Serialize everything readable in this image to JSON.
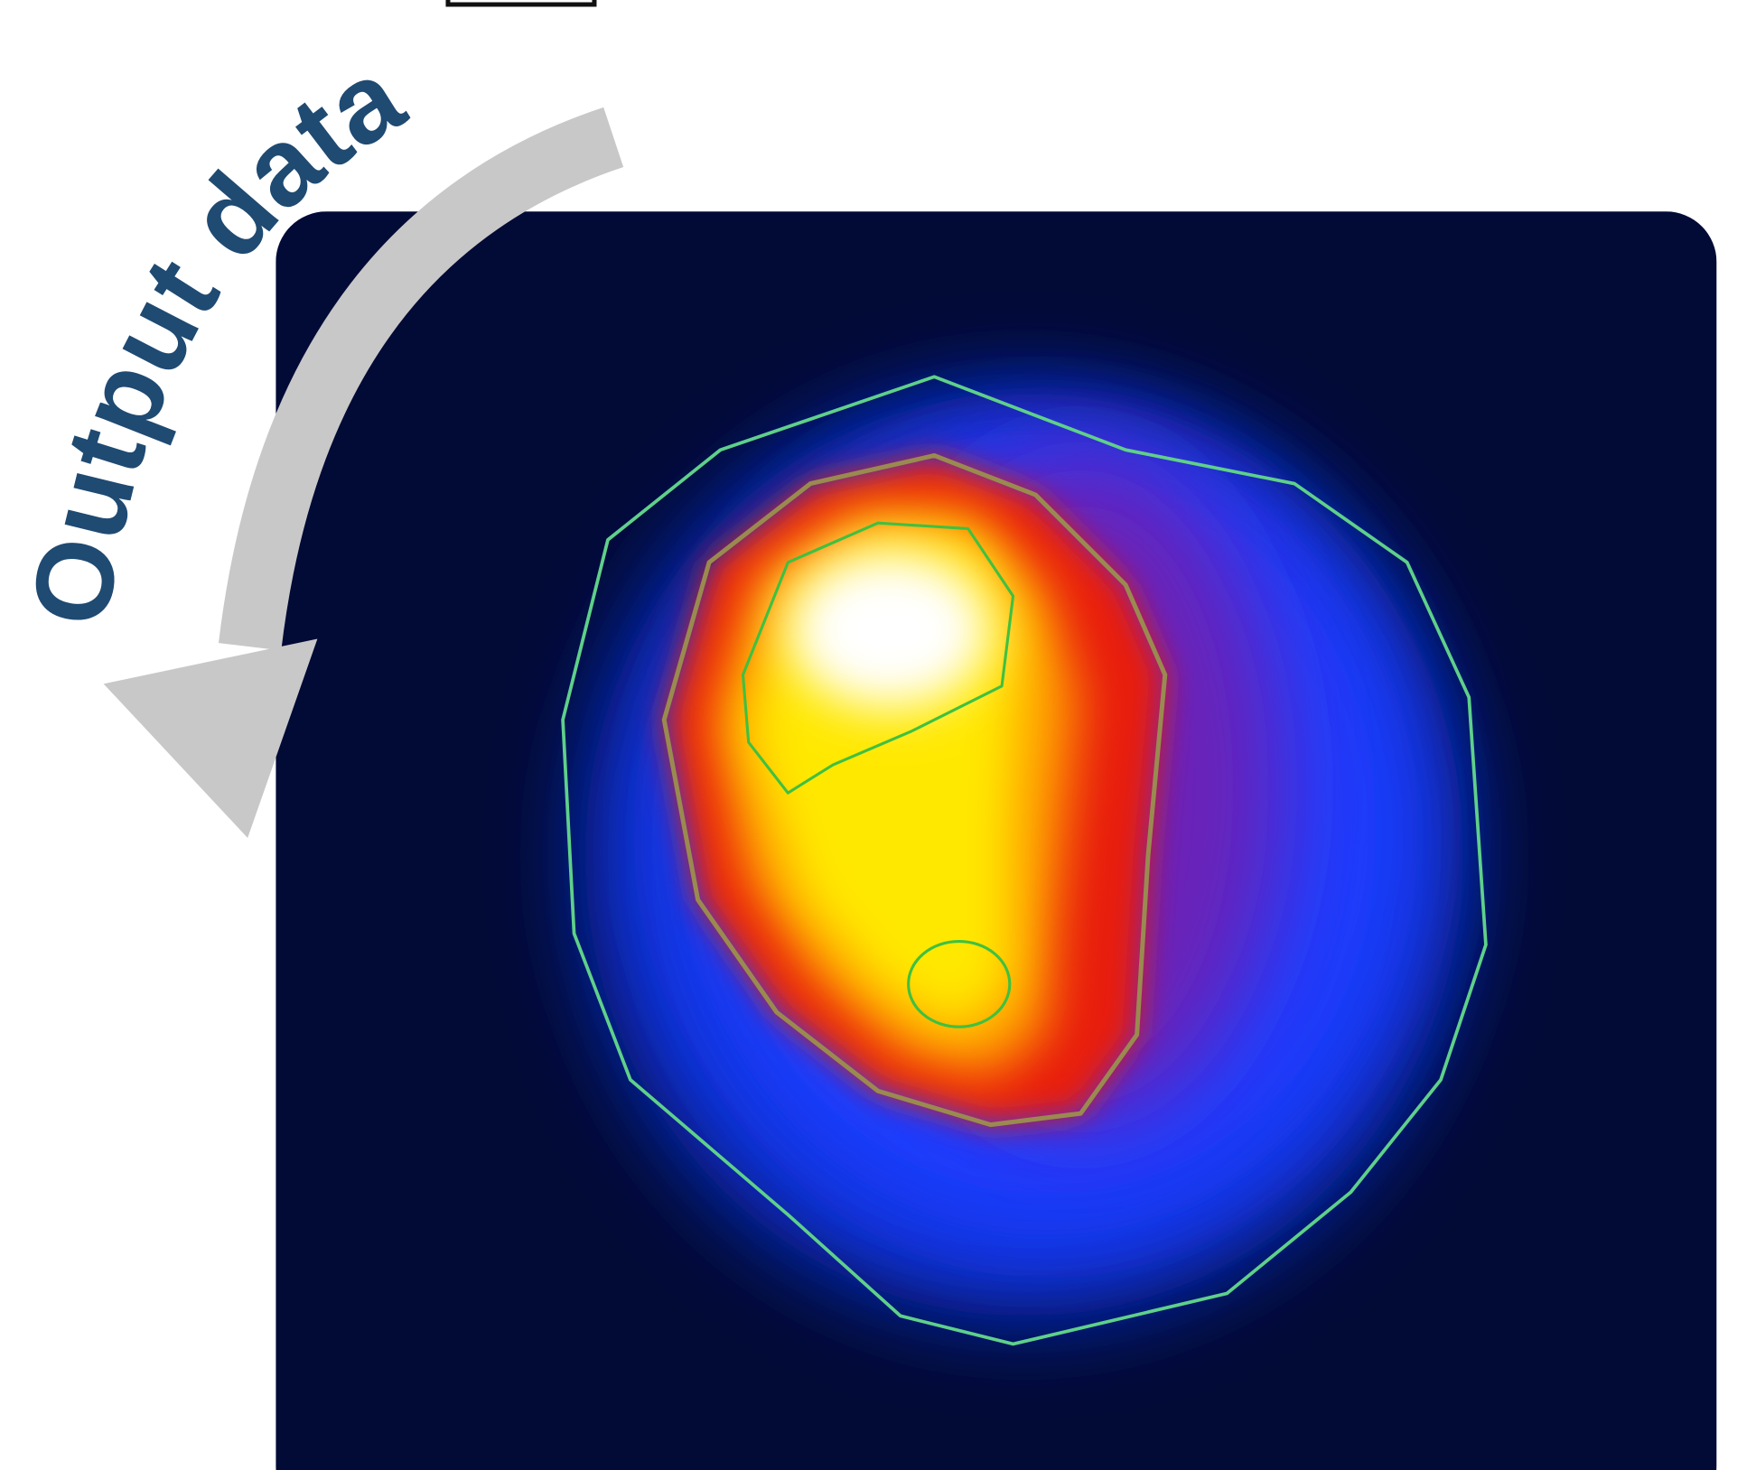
{
  "label": "Output data"
}
